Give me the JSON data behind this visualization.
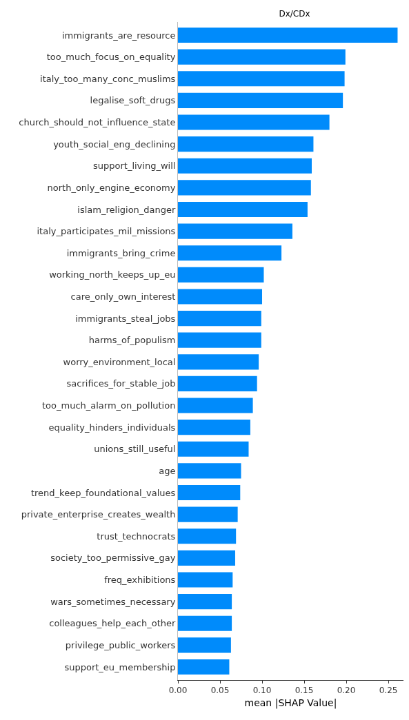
{
  "chart_data": {
    "type": "bar",
    "orientation": "horizontal",
    "title": "Dx/CDx",
    "xlabel": "mean |SHAP Value|",
    "categories": [
      "immigrants_are_resource",
      "too_much_focus_on_equality",
      "italy_too_many_conc_muslims",
      "legalise_soft_drugs",
      "church_should_not_influence_state",
      "youth_social_eng_declining",
      "support_living_will",
      "north_only_engine_economy",
      "islam_religion_danger",
      "italy_participates_mil_missions",
      "immigrants_bring_crime",
      "working_north_keeps_up_eu",
      "care_only_own_interest",
      "immigrants_steal_jobs",
      "harms_of_populism",
      "worry_environment_local",
      "sacrifices_for_stable_job",
      "too_much_alarm_on_pollution",
      "equality_hinders_individuals",
      "unions_still_useful",
      "age",
      "trend_keep_foundational_values",
      "private_enterprise_creates_wealth",
      "trust_technocrats",
      "society_too_permissive_gay",
      "freq_exhibitions",
      "wars_sometimes_necessary",
      "colleagues_help_each_other",
      "privilege_public_workers",
      "support_eu_membership"
    ],
    "values": [
      0.261,
      0.199,
      0.198,
      0.196,
      0.18,
      0.161,
      0.159,
      0.158,
      0.154,
      0.136,
      0.123,
      0.102,
      0.1,
      0.099,
      0.099,
      0.096,
      0.094,
      0.089,
      0.086,
      0.084,
      0.075,
      0.074,
      0.071,
      0.069,
      0.068,
      0.065,
      0.064,
      0.064,
      0.063,
      0.061
    ],
    "color": "#008bfb",
    "xlim": [
      0,
      0.268
    ],
    "xticks": [
      {
        "value": 0,
        "label": "0.00"
      },
      {
        "value": 0.05,
        "label": "0.05"
      },
      {
        "value": 0.1,
        "label": "0.10"
      },
      {
        "value": 0.15,
        "label": "0.15"
      },
      {
        "value": 0.2,
        "label": "0.20"
      },
      {
        "value": 0.25,
        "label": "0.25"
      }
    ],
    "grid": false
  }
}
